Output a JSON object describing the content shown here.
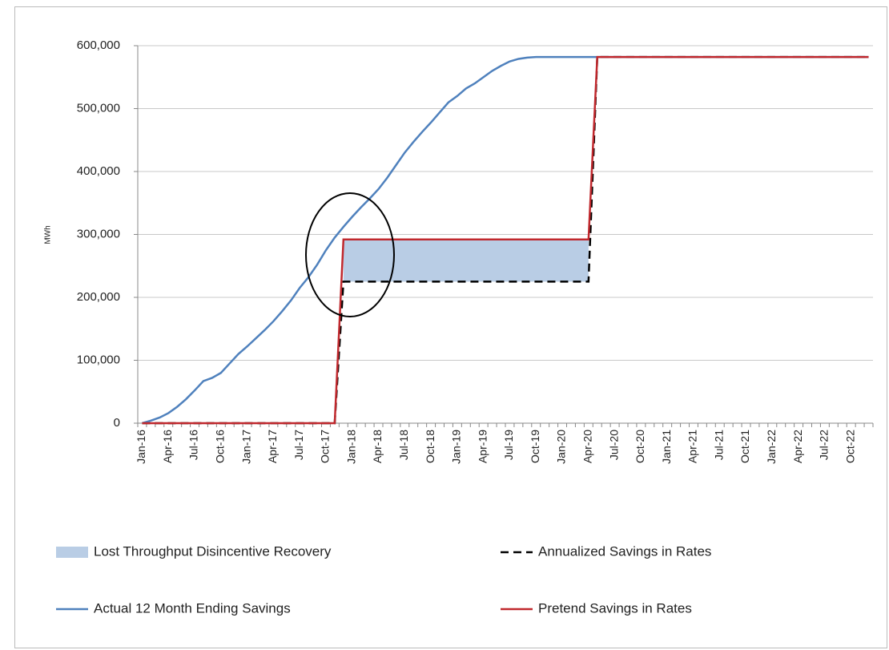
{
  "chart_data": {
    "type": "line",
    "y_label": "MWh",
    "categories": [
      "Jan-16",
      null,
      null,
      "Apr-16",
      null,
      null,
      "Jul-16",
      null,
      null,
      "Oct-16",
      null,
      null,
      "Jan-17",
      null,
      null,
      "Apr-17",
      null,
      null,
      "Jul-17",
      null,
      null,
      "Oct-17",
      null,
      null,
      "Jan-18",
      null,
      null,
      "Apr-18",
      null,
      null,
      "Jul-18",
      null,
      null,
      "Oct-18",
      null,
      null,
      "Jan-19",
      null,
      null,
      "Apr-19",
      null,
      null,
      "Jul-19",
      null,
      null,
      "Oct-19",
      null,
      null,
      "Jan-20",
      null,
      null,
      "Apr-20",
      null,
      null,
      "Jul-20",
      null,
      null,
      "Oct-20",
      null,
      null,
      "Jan-21",
      null,
      null,
      "Apr-21",
      null,
      null,
      "Jul-21",
      null,
      null,
      "Oct-21",
      null,
      null,
      "Jan-22",
      null,
      null,
      "Apr-22",
      null,
      null,
      "Jul-22",
      null,
      null,
      "Oct-22",
      null,
      null
    ],
    "ylim": [
      0,
      600000
    ],
    "yticks": [
      0,
      {
        "value": 100000,
        "label": "100,000"
      },
      {
        "value": 200000,
        "label": "200,000"
      },
      {
        "value": 300000,
        "label": "300,000"
      },
      {
        "value": 400000,
        "label": "400,000"
      },
      {
        "value": 500000,
        "label": "500,000"
      },
      {
        "value": 600000,
        "label": "600,000"
      }
    ],
    "grid": true,
    "series": [
      {
        "name": "Lost Throughput Disincentive Recovery",
        "kind": "area",
        "stack_on": "Annualized Savings in Rates",
        "color": "#b9cde5",
        "values": [
          null,
          null,
          null,
          null,
          null,
          null,
          null,
          null,
          null,
          null,
          null,
          null,
          null,
          null,
          null,
          null,
          null,
          null,
          null,
          null,
          null,
          null,
          null,
          67000,
          67000,
          67000,
          67000,
          67000,
          67000,
          67000,
          67000,
          67000,
          67000,
          67000,
          67000,
          67000,
          67000,
          67000,
          67000,
          67000,
          67000,
          67000,
          67000,
          67000,
          67000,
          67000,
          67000,
          67000,
          67000,
          67000,
          67000,
          67000,
          null,
          null,
          null,
          null,
          null,
          null,
          null,
          null,
          null,
          null,
          null,
          null,
          null,
          null,
          null,
          null,
          null,
          null,
          null,
          null,
          null,
          null,
          null,
          null,
          null,
          null,
          null,
          null,
          null,
          null,
          null,
          null
        ]
      },
      {
        "name": "Annualized Savings in Rates",
        "kind": "dashed",
        "color": "#000000",
        "values": [
          0,
          0,
          0,
          0,
          0,
          0,
          0,
          0,
          0,
          0,
          0,
          0,
          0,
          0,
          0,
          0,
          0,
          0,
          0,
          0,
          0,
          0,
          0,
          225000,
          225000,
          225000,
          225000,
          225000,
          225000,
          225000,
          225000,
          225000,
          225000,
          225000,
          225000,
          225000,
          225000,
          225000,
          225000,
          225000,
          225000,
          225000,
          225000,
          225000,
          225000,
          225000,
          225000,
          225000,
          225000,
          225000,
          225000,
          225000,
          582000,
          582000,
          582000,
          582000,
          582000,
          582000,
          582000,
          582000,
          582000,
          582000,
          582000,
          582000,
          582000,
          582000,
          582000,
          582000,
          582000,
          582000,
          582000,
          582000,
          582000,
          582000,
          582000,
          582000,
          582000,
          582000,
          582000,
          582000,
          582000,
          582000,
          582000,
          582000
        ]
      },
      {
        "name": "Actual 12 Month Ending Savings",
        "kind": "line",
        "color": "#4f81bd",
        "values": [
          0,
          4000,
          9000,
          16000,
          26000,
          38000,
          52000,
          67000,
          72000,
          80000,
          95000,
          110000,
          122000,
          135000,
          148000,
          162000,
          178000,
          195000,
          215000,
          232000,
          252000,
          275000,
          295000,
          312000,
          328000,
          343000,
          357000,
          372000,
          390000,
          410000,
          430000,
          447000,
          463000,
          478000,
          494000,
          510000,
          520000,
          532000,
          540000,
          550000,
          560000,
          568000,
          575000,
          579000,
          581000,
          582000,
          582000,
          582000,
          582000,
          582000,
          582000,
          582000,
          582000,
          582000,
          582000,
          582000,
          582000,
          582000,
          582000,
          582000,
          582000,
          582000,
          582000,
          582000,
          582000,
          582000,
          582000,
          582000,
          582000,
          582000,
          582000,
          582000,
          582000,
          582000,
          582000,
          582000,
          582000,
          582000,
          582000,
          582000,
          582000,
          582000,
          582000,
          582000
        ]
      },
      {
        "name": "Pretend Savings in Rates",
        "kind": "line",
        "color": "#c0282d",
        "values": [
          0,
          0,
          0,
          0,
          0,
          0,
          0,
          0,
          0,
          0,
          0,
          0,
          0,
          0,
          0,
          0,
          0,
          0,
          0,
          0,
          0,
          0,
          0,
          292000,
          292000,
          292000,
          292000,
          292000,
          292000,
          292000,
          292000,
          292000,
          292000,
          292000,
          292000,
          292000,
          292000,
          292000,
          292000,
          292000,
          292000,
          292000,
          292000,
          292000,
          292000,
          292000,
          292000,
          292000,
          292000,
          292000,
          292000,
          292000,
          582000,
          582000,
          582000,
          582000,
          582000,
          582000,
          582000,
          582000,
          582000,
          582000,
          582000,
          582000,
          582000,
          582000,
          582000,
          582000,
          582000,
          582000,
          582000,
          582000,
          582000,
          582000,
          582000,
          582000,
          582000,
          582000,
          582000,
          582000,
          582000,
          582000,
          582000,
          582000
        ]
      }
    ]
  }
}
